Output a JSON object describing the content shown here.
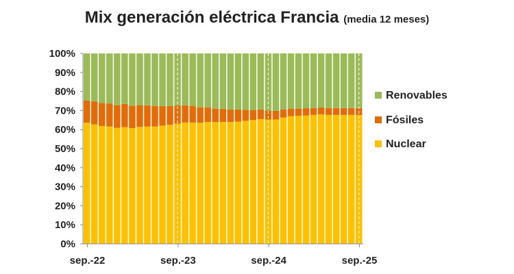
{
  "chart_data": {
    "type": "bar",
    "stacked": true,
    "title": "Mix generación eléctrica Francia",
    "subtitle": "(media 12 meses)",
    "ylim": [
      0,
      100
    ],
    "yticks": [
      "0%",
      "10%",
      "20%",
      "30%",
      "40%",
      "50%",
      "60%",
      "70%",
      "80%",
      "90%",
      "100%"
    ],
    "xtick_labels": [
      {
        "index": 0,
        "label": "sep.-22"
      },
      {
        "index": 12,
        "label": "sep.-23"
      },
      {
        "index": 24,
        "label": "sep.-24"
      },
      {
        "index": 36,
        "label": "sep.-25"
      }
    ],
    "legend_position": "right",
    "series": [
      {
        "name": "Nuclear",
        "color": "#FFC000",
        "values": [
          63.6,
          62.7,
          61.9,
          61.6,
          60.9,
          61.3,
          60.8,
          61.4,
          61.6,
          61.6,
          62.1,
          62.5,
          63.1,
          63.7,
          63.7,
          63.6,
          64.0,
          63.9,
          64.0,
          64.0,
          64.2,
          64.6,
          65.0,
          65.5,
          65.3,
          65.3,
          66.3,
          67.0,
          67.3,
          67.4,
          67.7,
          68.0,
          67.7,
          67.7,
          67.7,
          67.7,
          67.7
        ]
      },
      {
        "name": "Fósiles",
        "color": "#E36C09",
        "values": [
          11.7,
          12.1,
          12.0,
          12.1,
          12.0,
          12.1,
          11.7,
          11.5,
          11.1,
          10.8,
          10.2,
          9.8,
          9.6,
          9.0,
          8.6,
          8.1,
          7.7,
          7.1,
          6.9,
          6.5,
          6.3,
          5.8,
          5.3,
          5.0,
          4.7,
          4.5,
          4.2,
          4.0,
          3.7,
          3.8,
          3.6,
          3.6,
          3.6,
          3.6,
          3.6,
          3.6,
          3.6
        ]
      },
      {
        "name": "Renovables",
        "color": "#9BBB59",
        "values": [
          24.7,
          25.2,
          26.1,
          26.3,
          27.1,
          26.6,
          27.5,
          27.1,
          27.3,
          27.6,
          27.7,
          27.7,
          27.3,
          27.3,
          27.7,
          28.3,
          28.3,
          29.0,
          29.1,
          29.5,
          29.5,
          29.6,
          29.7,
          29.5,
          30.0,
          30.2,
          29.5,
          29.0,
          29.0,
          28.8,
          28.7,
          28.4,
          28.7,
          28.7,
          28.7,
          28.7,
          28.7
        ]
      }
    ]
  }
}
